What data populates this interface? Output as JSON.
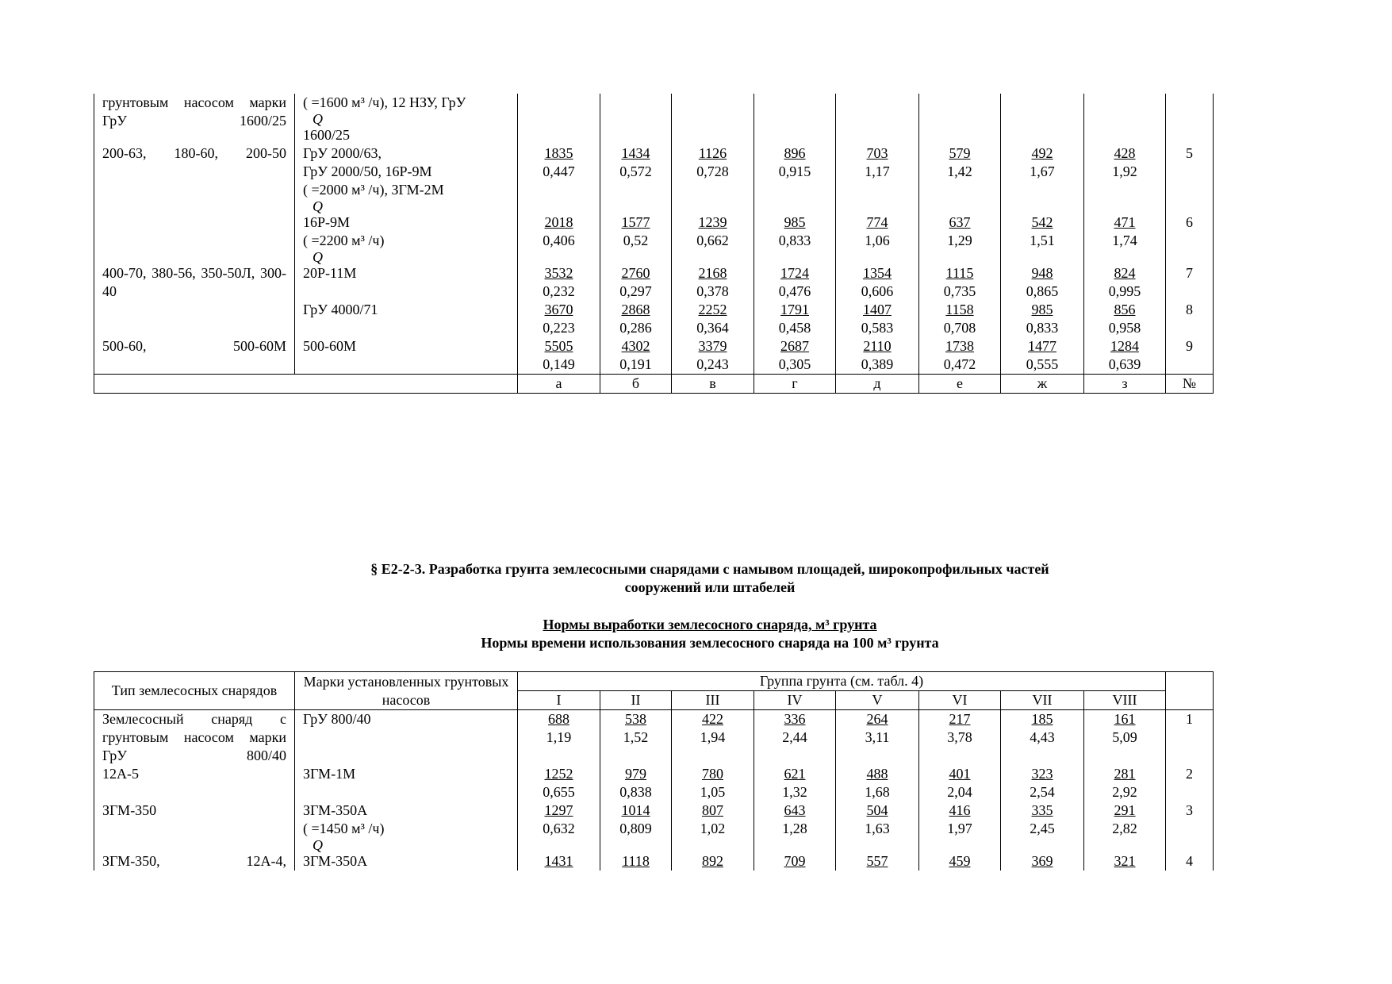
{
  "top_table": {
    "rows": [
      {
        "type": "грунтовым насосом марки ГрУ 1600/25",
        "pumps": [
          "( =1600 м³ /ч), 12 НЗУ, ГрУ",
          "Q",
          "1600/25"
        ]
      },
      {
        "type": "200-63, 180-60, 200-50",
        "pumps": [
          "ГрУ 2000/63,",
          "ГрУ 2000/50, 16Р-9М",
          "( =2000 м³ /ч), ЗГМ-2М",
          "Q"
        ],
        "norms": [
          1835,
          1434,
          1126,
          896,
          703,
          579,
          492,
          428
        ],
        "times": [
          "0,447",
          "0,572",
          "0,728",
          "0,915",
          "1,17",
          "1,42",
          "1,67",
          "1,92"
        ],
        "num": 5
      },
      {
        "pumps": [
          "16Р-9М",
          "( =2200 м³ /ч)",
          "Q"
        ],
        "norms": [
          2018,
          1577,
          1239,
          985,
          774,
          637,
          542,
          471
        ],
        "times": [
          "0,406",
          "0,52",
          "0,662",
          "0,833",
          "1,06",
          "1,29",
          "1,51",
          "1,74"
        ],
        "num": 6
      },
      {
        "type": "400-70, 380-56, 350-50Л, 300-40",
        "pumps": [
          "20Р-11М"
        ],
        "norms": [
          3532,
          2760,
          2168,
          1724,
          1354,
          1115,
          948,
          824
        ],
        "times": [
          "0,232",
          "0,297",
          "0,378",
          "0,476",
          "0,606",
          "0,735",
          "0,865",
          "0,995"
        ],
        "num": 7
      },
      {
        "pumps": [
          "ГрУ 4000/71"
        ],
        "norms": [
          3670,
          2868,
          2252,
          1791,
          1407,
          1158,
          985,
          856
        ],
        "times": [
          "0,223",
          "0,286",
          "0,364",
          "0,458",
          "0,583",
          "0,708",
          "0,833",
          "0,958"
        ],
        "num": 8
      },
      {
        "type": "500-60, 500-60М",
        "pumps": [
          "500-60М"
        ],
        "norms": [
          5505,
          4302,
          3379,
          2687,
          2110,
          1738,
          1477,
          1284
        ],
        "times": [
          "0,149",
          "0,191",
          "0,243",
          "0,305",
          "0,389",
          "0,472",
          "0,555",
          "0,639"
        ],
        "num": 9
      }
    ],
    "footer": [
      "а",
      "б",
      "в",
      "г",
      "д",
      "е",
      "ж",
      "з",
      "№"
    ]
  },
  "section": {
    "title": "§ Е2-2-3. Разработка грунта землесосными снарядами с намывом площадей, широкопрофильных частей сооружений или штабелей",
    "subtitle_1": "Нормы выработки землесосного снаряда, м³ грунта",
    "subtitle_2": "Нормы времени использования землесосного снаряда на 100 м³ грунта"
  },
  "bottom_table": {
    "header": {
      "type": "Тип землесосных снарядов",
      "pumps": "Марки установленных грунтовых насосов",
      "group": "Группа грунта (см. табл. 4)",
      "groups": [
        "I",
        "II",
        "III",
        "IV",
        "V",
        "VI",
        "VII",
        "VIII"
      ]
    },
    "rows": [
      {
        "type": "Землесосный снаряд с грунтовым насосом марки ГрУ 800/40",
        "pumps": [
          "ГрУ 800/40"
        ],
        "norms": [
          688,
          538,
          422,
          336,
          264,
          217,
          185,
          161
        ],
        "times": [
          "1,19",
          "1,52",
          "1,94",
          "2,44",
          "3,11",
          "3,78",
          "4,43",
          "5,09"
        ],
        "num": 1
      },
      {
        "type": "12А-5",
        "pumps": [
          "ЗГМ-1М"
        ],
        "norms": [
          1252,
          979,
          780,
          621,
          488,
          401,
          323,
          281
        ],
        "times": [
          "0,655",
          "0,838",
          "1,05",
          "1,32",
          "1,68",
          "2,04",
          "2,54",
          "2,92"
        ],
        "num": 2
      },
      {
        "type": "ЗГМ-350",
        "pumps": [
          "ЗГМ-350А",
          "( =1450 м³ /ч)",
          "Q"
        ],
        "norms": [
          1297,
          1014,
          807,
          643,
          504,
          416,
          335,
          291
        ],
        "times": [
          "0,632",
          "0,809",
          "1,02",
          "1,28",
          "1,63",
          "1,97",
          "2,45",
          "2,82"
        ],
        "num": 3
      },
      {
        "type": "ЗГМ-350, 12А-4,",
        "pumps": [
          "ЗГМ-350А"
        ],
        "norms": [
          1431,
          1118,
          892,
          709,
          557,
          459,
          369,
          321
        ],
        "num": 4
      }
    ]
  }
}
